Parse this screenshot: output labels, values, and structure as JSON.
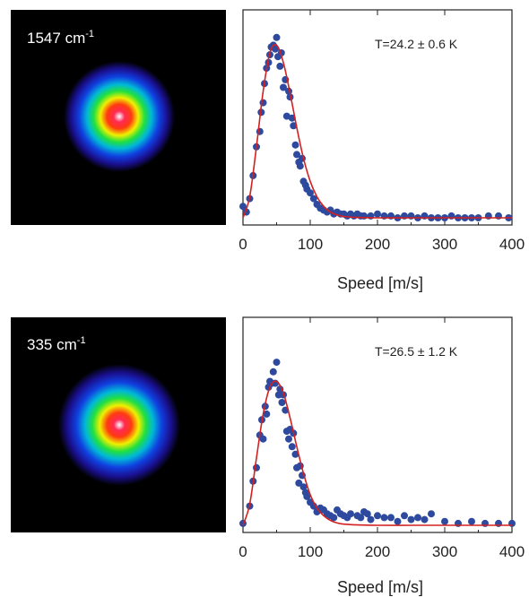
{
  "colors": {
    "points": "#2e4a9e",
    "fit": "#d42020",
    "image_background": "#000000",
    "axis": "#222222"
  },
  "chart_data": [
    {
      "type": "scatter",
      "image_label": {
        "value": "1547",
        "unit": "cm",
        "exponent": "-1"
      },
      "annotation": "T=24.2 ± 0.6 K",
      "xlabel": "Speed [m/s]",
      "ylabel": "",
      "xlim": [
        0,
        400
      ],
      "ylim": [
        0,
        1.0
      ],
      "xticks": [
        0,
        100,
        200,
        300,
        400
      ],
      "xtick_labels": [
        "0",
        "100",
        "200",
        "300",
        "400"
      ],
      "grid": false,
      "fit_temperature_K": 24.2,
      "series": [
        {
          "type": "scatter",
          "x": [
            0,
            5,
            10,
            15,
            20,
            25,
            27,
            30,
            32,
            35,
            38,
            40,
            42,
            45,
            48,
            50,
            52,
            55,
            57,
            60,
            63,
            65,
            68,
            70,
            73,
            75,
            78,
            80,
            83,
            85,
            88,
            90,
            93,
            95,
            100,
            105,
            110,
            115,
            120,
            125,
            130,
            135,
            140,
            145,
            150,
            155,
            160,
            165,
            170,
            175,
            180,
            190,
            200,
            210,
            220,
            230,
            240,
            250,
            260,
            270,
            280,
            290,
            300,
            310,
            320,
            330,
            340,
            350,
            365,
            380,
            395
          ],
          "y": [
            0.06,
            0.03,
            0.1,
            0.22,
            0.37,
            0.45,
            0.55,
            0.6,
            0.7,
            0.78,
            0.81,
            0.85,
            0.89,
            0.9,
            0.88,
            0.94,
            0.84,
            0.79,
            0.86,
            0.68,
            0.72,
            0.53,
            0.66,
            0.63,
            0.52,
            0.48,
            0.38,
            0.33,
            0.29,
            0.27,
            0.31,
            0.19,
            0.17,
            0.15,
            0.13,
            0.1,
            0.07,
            0.05,
            0.04,
            0.03,
            0.04,
            0.02,
            0.03,
            0.02,
            0.02,
            0.01,
            0.02,
            0.01,
            0.02,
            0.01,
            0.01,
            0.01,
            0.02,
            0.01,
            0.01,
            0.0,
            0.01,
            0.01,
            0.0,
            0.01,
            0.0,
            0.0,
            0.0,
            0.01,
            0.0,
            0.0,
            0.0,
            0.0,
            0.01,
            0.01,
            0.0
          ]
        },
        {
          "type": "line",
          "x": [
            0,
            10,
            20,
            30,
            40,
            50,
            60,
            70,
            80,
            90,
            100,
            110,
            120,
            130,
            140,
            150,
            170,
            200,
            250,
            300,
            350,
            400
          ],
          "y": [
            0.0,
            0.11,
            0.37,
            0.66,
            0.86,
            0.9,
            0.81,
            0.65,
            0.47,
            0.31,
            0.19,
            0.11,
            0.06,
            0.03,
            0.015,
            0.007,
            0.002,
            0.0,
            0.0,
            0.0,
            0.0,
            0.0
          ]
        }
      ]
    },
    {
      "type": "scatter",
      "image_label": {
        "value": "335",
        "unit": "cm",
        "exponent": "-1"
      },
      "annotation": "T=26.5 ± 1.2 K",
      "xlabel": "Speed [m/s]",
      "ylabel": "",
      "xlim": [
        0,
        400
      ],
      "ylim": [
        0,
        1.0
      ],
      "xticks": [
        0,
        100,
        200,
        300,
        400
      ],
      "xtick_labels": [
        "0",
        "100",
        "200",
        "300",
        "400"
      ],
      "grid": false,
      "fit_temperature_K": 26.5,
      "series": [
        {
          "type": "scatter",
          "x": [
            0,
            10,
            15,
            20,
            25,
            28,
            30,
            33,
            35,
            38,
            40,
            43,
            45,
            48,
            50,
            53,
            55,
            58,
            60,
            63,
            65,
            68,
            70,
            73,
            75,
            78,
            80,
            83,
            85,
            88,
            90,
            93,
            95,
            100,
            105,
            110,
            115,
            120,
            125,
            130,
            135,
            140,
            145,
            150,
            155,
            160,
            170,
            175,
            180,
            185,
            190,
            200,
            210,
            220,
            230,
            240,
            250,
            260,
            270,
            280,
            300,
            320,
            340,
            360,
            380,
            400
          ],
          "y": [
            0.01,
            0.1,
            0.23,
            0.3,
            0.47,
            0.55,
            0.45,
            0.62,
            0.58,
            0.72,
            0.75,
            0.74,
            0.8,
            0.74,
            0.85,
            0.68,
            0.71,
            0.64,
            0.68,
            0.6,
            0.49,
            0.45,
            0.5,
            0.41,
            0.48,
            0.37,
            0.3,
            0.22,
            0.31,
            0.26,
            0.2,
            0.17,
            0.15,
            0.12,
            0.1,
            0.07,
            0.09,
            0.08,
            0.06,
            0.05,
            0.04,
            0.08,
            0.06,
            0.05,
            0.04,
            0.06,
            0.05,
            0.04,
            0.07,
            0.06,
            0.03,
            0.05,
            0.04,
            0.04,
            0.02,
            0.05,
            0.03,
            0.04,
            0.03,
            0.06,
            0.02,
            0.01,
            0.02,
            0.01,
            0.01,
            0.01
          ]
        },
        {
          "type": "line",
          "x": [
            0,
            10,
            20,
            30,
            40,
            50,
            60,
            70,
            80,
            90,
            100,
            110,
            120,
            130,
            140,
            150,
            170,
            200,
            250,
            300,
            350,
            400
          ],
          "y": [
            0.0,
            0.11,
            0.35,
            0.58,
            0.72,
            0.75,
            0.69,
            0.56,
            0.41,
            0.27,
            0.16,
            0.09,
            0.05,
            0.025,
            0.012,
            0.006,
            0.002,
            0.0,
            0.0,
            0.0,
            0.0,
            0.0
          ]
        }
      ]
    }
  ]
}
